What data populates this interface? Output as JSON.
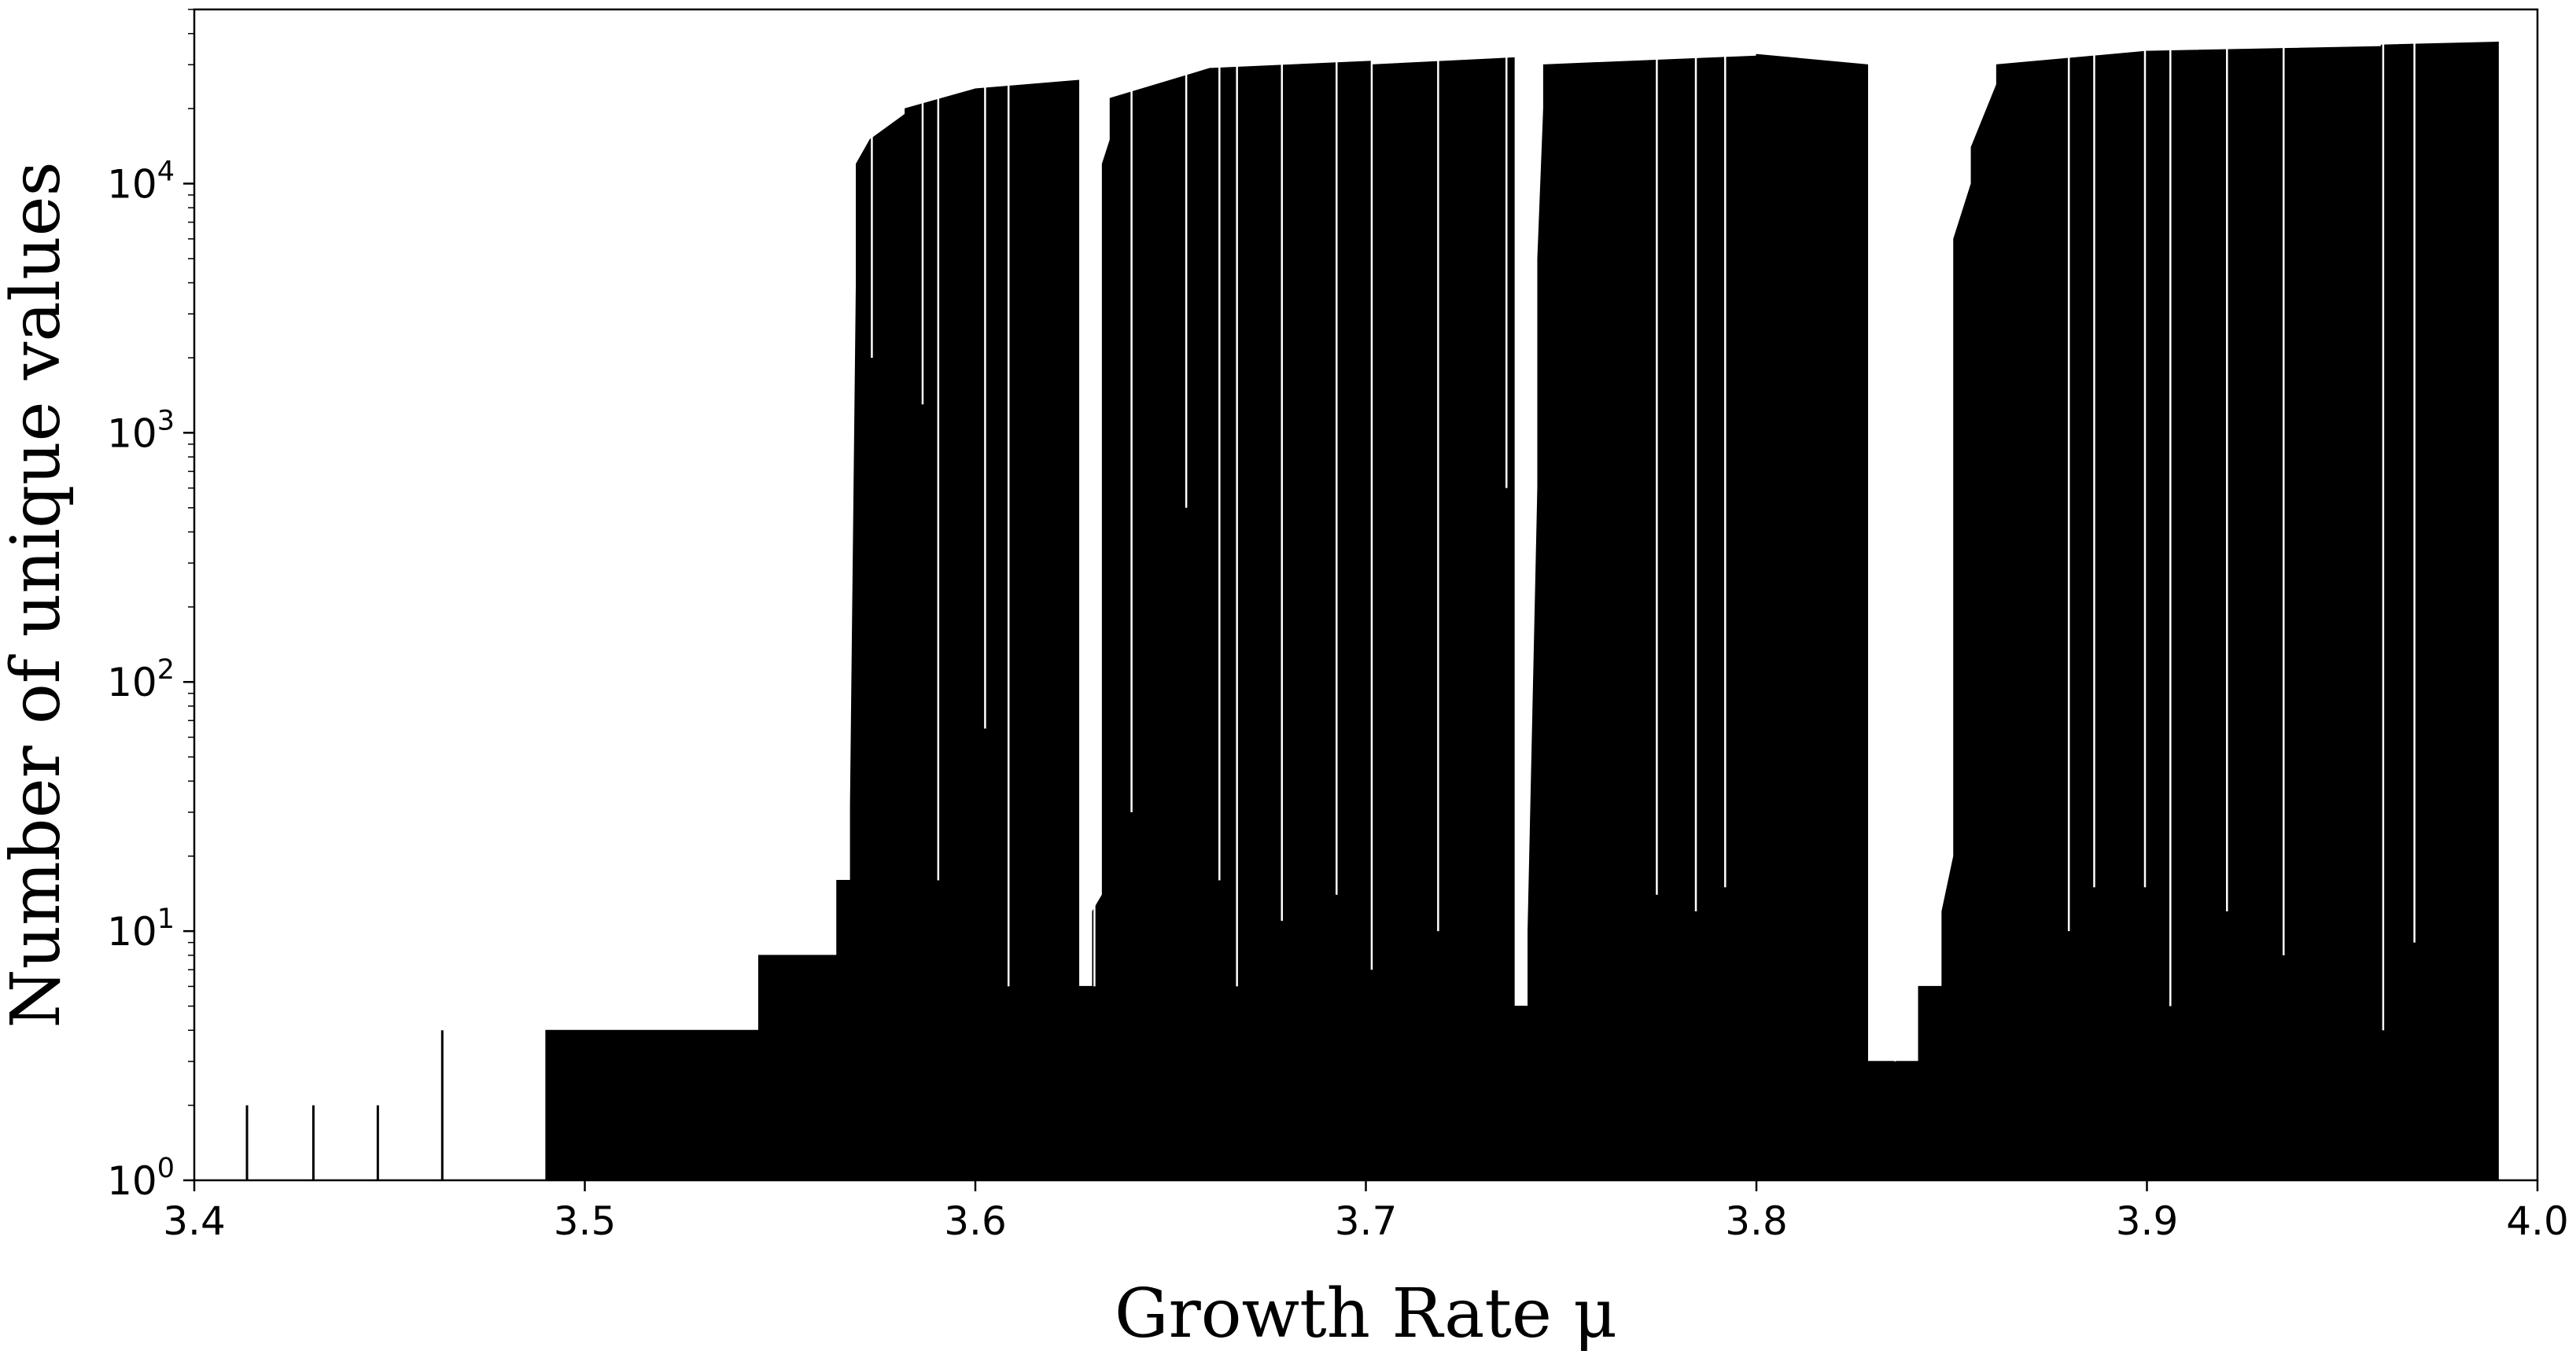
{
  "chart_data": {
    "type": "bar",
    "xlabel": "Growth Rate μ",
    "ylabel": "Number of unique values",
    "xlim": [
      3.4,
      4.0
    ],
    "ylim": [
      1,
      50000
    ],
    "yscale": "log",
    "grid": false,
    "bar_color": "#000000",
    "xticks": [
      3.4,
      3.5,
      3.6,
      3.7,
      3.8,
      3.9,
      4.0
    ],
    "xtick_labels": [
      "3.4",
      "3.5",
      "3.6",
      "3.7",
      "3.8",
      "3.9",
      "4.0"
    ],
    "yticks": [
      {
        "value": 1,
        "base": "10",
        "exp": "0"
      },
      {
        "value": 10,
        "base": "10",
        "exp": "1"
      },
      {
        "value": 100,
        "base": "10",
        "exp": "2"
      },
      {
        "value": 1000,
        "base": "10",
        "exp": "3"
      },
      {
        "value": 10000,
        "base": "10",
        "exp": "4"
      }
    ],
    "spikes": [
      {
        "x": 3.4135,
        "y": 2
      },
      {
        "x": 3.4305,
        "y": 2
      },
      {
        "x": 3.447,
        "y": 2
      },
      {
        "x": 3.4635,
        "y": 4
      }
    ],
    "segments": [
      {
        "x0": 3.49,
        "x1": 3.5445,
        "y0": 4,
        "y1": 4
      },
      {
        "x0": 3.5445,
        "x1": 3.5645,
        "y0": 8,
        "y1": 8
      },
      {
        "x0": 3.5645,
        "x1": 3.568,
        "y0": 16,
        "y1": 16
      },
      {
        "x0": 3.568,
        "x1": 3.5695,
        "y0": 32,
        "y1": 4000
      },
      {
        "x0": 3.5695,
        "x1": 3.573,
        "y0": 12000,
        "y1": 15000
      },
      {
        "x0": 3.573,
        "x1": 3.582,
        "y0": 15000,
        "y1": 19000
      },
      {
        "x0": 3.582,
        "x1": 3.6,
        "y0": 20000,
        "y1": 24000
      },
      {
        "x0": 3.6,
        "x1": 3.6265,
        "y0": 24000,
        "y1": 26000
      },
      {
        "x0": 3.6265,
        "x1": 3.63,
        "y0": 6,
        "y1": 6
      },
      {
        "x0": 3.63,
        "x1": 3.6325,
        "y0": 12,
        "y1": 14
      },
      {
        "x0": 3.6325,
        "x1": 3.6345,
        "y0": 12000,
        "y1": 15000
      },
      {
        "x0": 3.6345,
        "x1": 3.66,
        "y0": 22000,
        "y1": 29000
      },
      {
        "x0": 3.66,
        "x1": 3.7015,
        "y0": 29000,
        "y1": 31000
      },
      {
        "x0": 3.7015,
        "x1": 3.738,
        "y0": 30000,
        "y1": 32000
      },
      {
        "x0": 3.738,
        "x1": 3.7415,
        "y0": 5,
        "y1": 5
      },
      {
        "x0": 3.7415,
        "x1": 3.744,
        "y0": 10,
        "y1": 600
      },
      {
        "x0": 3.744,
        "x1": 3.7455,
        "y0": 5000,
        "y1": 20000
      },
      {
        "x0": 3.7455,
        "x1": 3.8,
        "y0": 30000,
        "y1": 32500
      },
      {
        "x0": 3.8,
        "x1": 3.8285,
        "y0": 33000,
        "y1": 30000
      },
      {
        "x0": 3.8285,
        "x1": 3.8415,
        "y0": 3,
        "y1": 3
      },
      {
        "x0": 3.8415,
        "x1": 3.8475,
        "y0": 6,
        "y1": 6
      },
      {
        "x0": 3.8475,
        "x1": 3.8505,
        "y0": 12,
        "y1": 20
      },
      {
        "x0": 3.8505,
        "x1": 3.855,
        "y0": 6000,
        "y1": 10000
      },
      {
        "x0": 3.855,
        "x1": 3.8615,
        "y0": 14000,
        "y1": 25000
      },
      {
        "x0": 3.8615,
        "x1": 3.9,
        "y0": 30000,
        "y1": 34000
      },
      {
        "x0": 3.9,
        "x1": 3.96,
        "y0": 34000,
        "y1": 35500
      },
      {
        "x0": 3.96,
        "x1": 3.99,
        "y0": 36000,
        "y1": 37000
      }
    ],
    "gaps": [
      {
        "x": 3.5735,
        "y": 2000
      },
      {
        "x": 3.5865,
        "y": 1300
      },
      {
        "x": 3.5905,
        "y": 16
      },
      {
        "x": 3.6025,
        "y": 65
      },
      {
        "x": 3.6085,
        "y": 6
      },
      {
        "x": 3.6305,
        "y": 6
      },
      {
        "x": 3.64,
        "y": 30
      },
      {
        "x": 3.654,
        "y": 500
      },
      {
        "x": 3.6625,
        "y": 16
      },
      {
        "x": 3.667,
        "y": 6
      },
      {
        "x": 3.6785,
        "y": 11
      },
      {
        "x": 3.6925,
        "y": 14
      },
      {
        "x": 3.7015,
        "y": 7
      },
      {
        "x": 3.7185,
        "y": 10
      },
      {
        "x": 3.736,
        "y": 600
      },
      {
        "x": 3.7745,
        "y": 14
      },
      {
        "x": 3.7845,
        "y": 12
      },
      {
        "x": 3.792,
        "y": 15
      },
      {
        "x": 3.8355,
        "y": 3
      },
      {
        "x": 3.88,
        "y": 10
      },
      {
        "x": 3.8865,
        "y": 15
      },
      {
        "x": 3.8995,
        "y": 15
      },
      {
        "x": 3.906,
        "y": 5
      },
      {
        "x": 3.9205,
        "y": 12
      },
      {
        "x": 3.935,
        "y": 8
      },
      {
        "x": 3.9605,
        "y": 4
      },
      {
        "x": 3.9685,
        "y": 9
      }
    ]
  }
}
